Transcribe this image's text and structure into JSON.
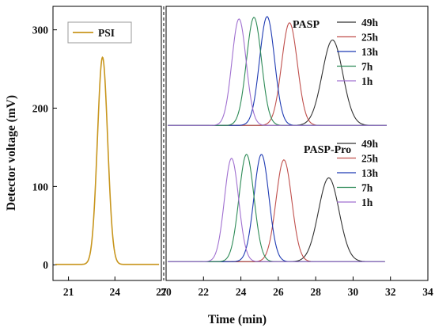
{
  "chart_data": [
    {
      "type": "line",
      "xlim": [
        20,
        27
      ],
      "ylim": [
        -20,
        330
      ],
      "xticks": [
        21,
        24,
        27
      ],
      "yticks": [
        0,
        100,
        200,
        300
      ],
      "xlabel": "Time (min)",
      "ylabel": "Detector voltage (mV)",
      "grid": false,
      "legend": {
        "placement": "top-left",
        "entries": [
          "PSI"
        ]
      },
      "series": [
        {
          "name": "PSI",
          "color": "#c8961e",
          "baseline": 0.5,
          "peak_time": 23.2,
          "peak_height": 265,
          "sigma": 0.33
        }
      ]
    },
    {
      "type": "line",
      "xlim": [
        20,
        34
      ],
      "ylim": [
        -20,
        330
      ],
      "xticks": [
        20,
        22,
        24,
        26,
        28,
        30,
        32,
        34
      ],
      "grid": false,
      "groups": [
        {
          "label": "PASP",
          "legend": {
            "placement": "top-right",
            "entries": [
              "49h",
              "25h",
              "13h",
              "7h",
              "1h"
            ]
          },
          "series": [
            {
              "name": "49h",
              "color": "#333333",
              "baseline": 178,
              "peak_time": 28.9,
              "peak_height": 287,
              "sigma": 0.55
            },
            {
              "name": "25h",
              "color": "#c0504d",
              "baseline": 178,
              "peak_time": 26.6,
              "peak_height": 309,
              "sigma": 0.42
            },
            {
              "name": "13h",
              "color": "#1f3bb3",
              "baseline": 178,
              "peak_time": 25.4,
              "peak_height": 317,
              "sigma": 0.4
            },
            {
              "name": "7h",
              "color": "#2e8b57",
              "baseline": 178,
              "peak_time": 24.7,
              "peak_height": 316,
              "sigma": 0.4
            },
            {
              "name": "1h",
              "color": "#a070d0",
              "baseline": 178,
              "peak_time": 23.9,
              "peak_height": 314,
              "sigma": 0.38
            }
          ]
        },
        {
          "label": "PASP-Pro",
          "legend": {
            "placement": "right",
            "entries": [
              "49h",
              "25h",
              "13h",
              "7h",
              "1h"
            ]
          },
          "series": [
            {
              "name": "49h",
              "color": "#333333",
              "baseline": 4,
              "peak_time": 28.7,
              "peak_height": 111,
              "sigma": 0.55
            },
            {
              "name": "25h",
              "color": "#c0504d",
              "baseline": 4,
              "peak_time": 26.3,
              "peak_height": 134,
              "sigma": 0.42
            },
            {
              "name": "13h",
              "color": "#1f3bb3",
              "baseline": 4,
              "peak_time": 25.1,
              "peak_height": 141,
              "sigma": 0.4
            },
            {
              "name": "7h",
              "color": "#2e8b57",
              "baseline": 4,
              "peak_time": 24.3,
              "peak_height": 141,
              "sigma": 0.4
            },
            {
              "name": "1h",
              "color": "#a070d0",
              "baseline": 4,
              "peak_time": 23.5,
              "peak_height": 136,
              "sigma": 0.38
            }
          ]
        }
      ]
    }
  ]
}
